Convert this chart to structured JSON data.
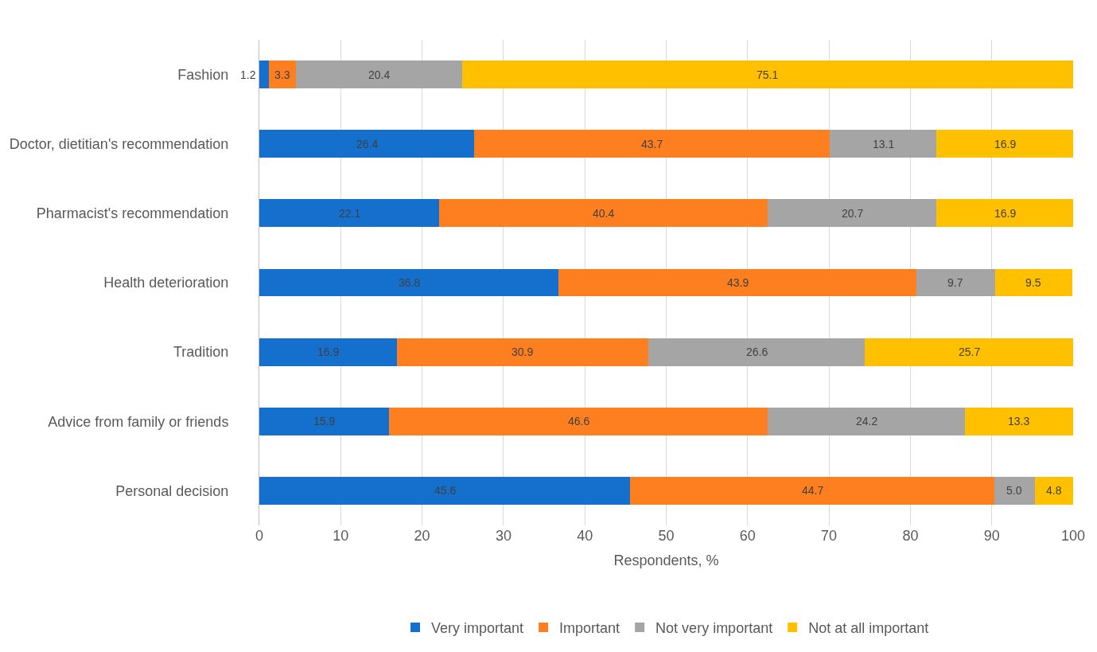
{
  "chart_data": {
    "type": "bar",
    "orientation": "horizontal",
    "stacked": true,
    "categories": [
      "Fashion",
      "Doctor, dietitian's recommendation",
      "Pharmacist's recommendation",
      "Health deterioration",
      "Tradition",
      "Advice from family or friends",
      "Personal decision"
    ],
    "series": [
      {
        "name": "Very important",
        "color": "#1570cd",
        "values": [
          1.2,
          26.4,
          22.1,
          36.8,
          16.9,
          15.9,
          45.6
        ],
        "value_labels": [
          "1.2",
          "26.4",
          "22.1",
          "36.8",
          "16.9",
          "15.9",
          "45.6"
        ]
      },
      {
        "name": "Important",
        "color": "#fd7f20",
        "values": [
          3.3,
          43.7,
          40.4,
          43.9,
          30.9,
          46.6,
          44.7
        ],
        "value_labels": [
          "3.3",
          "43.7",
          "40.4",
          "43.9",
          "30.9",
          "46.6",
          "44.7"
        ]
      },
      {
        "name": "Not very important",
        "color": "#a5a5a5",
        "values": [
          20.4,
          13.1,
          20.7,
          9.7,
          26.6,
          24.2,
          5.0
        ],
        "value_labels": [
          "20.4",
          "13.1",
          "20.7",
          "9.7",
          "26.6",
          "24.2",
          "5.0"
        ]
      },
      {
        "name": "Not at all important",
        "color": "#ffc000",
        "values": [
          75.1,
          16.9,
          16.9,
          9.5,
          25.7,
          13.3,
          4.8
        ],
        "value_labels": [
          "75.1",
          "16.9",
          "16.9",
          "9.5",
          "25.7",
          "13.3",
          "4.8"
        ]
      }
    ],
    "xlabel": "Respondents, %",
    "xlim": [
      0,
      100
    ],
    "xticks": [
      0,
      10,
      20,
      30,
      40,
      50,
      60,
      70,
      80,
      90,
      100
    ],
    "grid": "x",
    "legend": "bottom"
  }
}
